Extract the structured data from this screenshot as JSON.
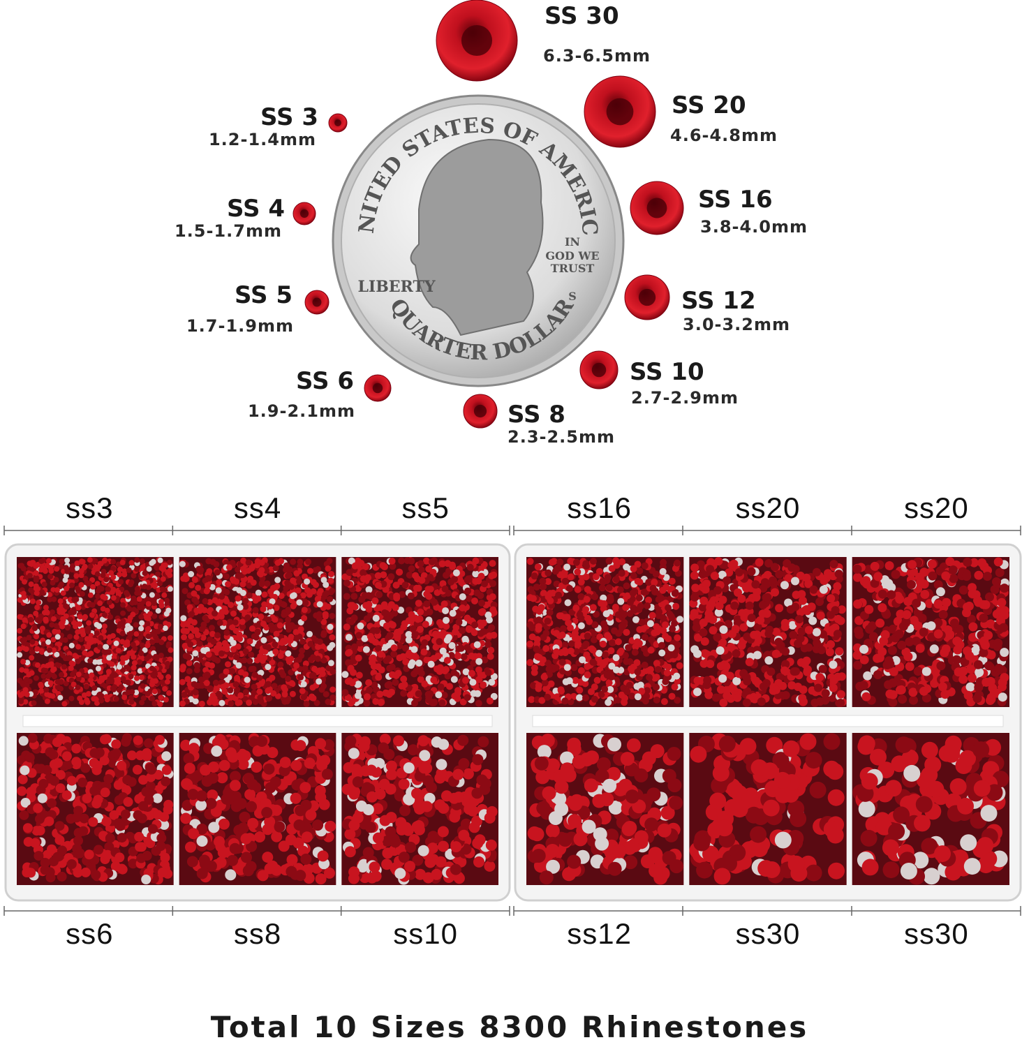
{
  "sizes": [
    {
      "label": "SS 30",
      "range": "6.3-6.5mm"
    },
    {
      "label": "SS 20",
      "range": "4.6-4.8mm"
    },
    {
      "label": "SS 16",
      "range": "3.8-4.0mm"
    },
    {
      "label": "SS 12",
      "range": "3.0-3.2mm"
    },
    {
      "label": "SS 10",
      "range": "2.7-2.9mm"
    },
    {
      "label": "SS 8",
      "range": "2.3-2.5mm"
    },
    {
      "label": "SS 6",
      "range": "1.9-2.1mm"
    },
    {
      "label": "SS 5",
      "range": "1.7-1.9mm"
    },
    {
      "label": "SS 4",
      "range": "1.5-1.7mm"
    },
    {
      "label": "SS 3",
      "range": "1.2-1.4mm"
    }
  ],
  "coin": {
    "top_text": "UNITED STATES OF AMERICA",
    "bottom_text": "QUARTER DOLLAR",
    "liberty": "LIBERTY",
    "motto": [
      "IN",
      "GOD WE",
      "TRUST"
    ],
    "mint": "S"
  },
  "box_labels": {
    "top": [
      "ss3",
      "ss4",
      "ss5",
      "ss16",
      "ss20",
      "ss20"
    ],
    "bottom": [
      "ss6",
      "ss8",
      "ss10",
      "ss12",
      "ss30",
      "ss30"
    ]
  },
  "footer": "Total 10 Sizes 8300 Rhinestones"
}
